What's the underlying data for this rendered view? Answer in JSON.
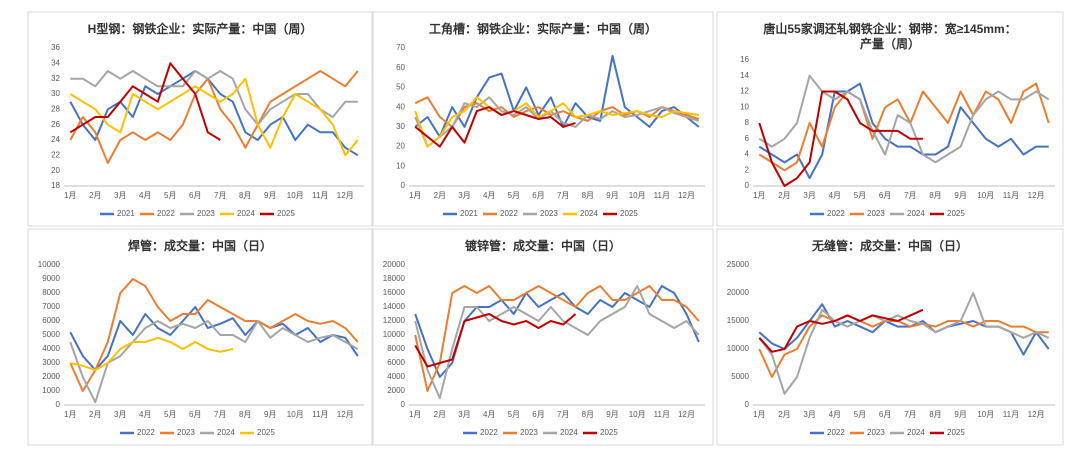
{
  "chart_data": [
    {
      "type": "line",
      "title": "H型钢：钢铁企业：实际产量：中国（周）",
      "categories": [
        "1月",
        null,
        "2月",
        null,
        "3月",
        null,
        "4月",
        null,
        "5月",
        null,
        "6月",
        null,
        "7月",
        null,
        "8月",
        null,
        "9月",
        null,
        "10月",
        null,
        "11月",
        null,
        "12月",
        null
      ],
      "ylim": [
        18,
        36
      ],
      "yticks": [
        18,
        20,
        22,
        24,
        26,
        28,
        30,
        32,
        34,
        36
      ],
      "series": [
        {
          "name": "2021",
          "color": "#4472c4",
          "values": [
            29,
            26,
            24,
            28,
            29,
            27,
            31,
            30,
            31,
            32,
            33,
            32,
            30,
            29,
            25,
            24,
            26,
            27,
            24,
            26,
            25,
            25,
            23,
            22
          ]
        },
        {
          "name": "2022",
          "color": "#ed7d31",
          "values": [
            24,
            27,
            25,
            21,
            24,
            25,
            24,
            25,
            24,
            26,
            30,
            32,
            28,
            26,
            23,
            26,
            29,
            30,
            31,
            32,
            33,
            32,
            31,
            33
          ]
        },
        {
          "name": "2023",
          "color": "#a5a5a5",
          "values": [
            32,
            32,
            31,
            33,
            32,
            33,
            32,
            31,
            31,
            31,
            33,
            32,
            33,
            32,
            28,
            26,
            28,
            29,
            30,
            30,
            28,
            27,
            29,
            29
          ]
        },
        {
          "name": "2024",
          "color": "#ffc000",
          "values": [
            30,
            29,
            28,
            26,
            25,
            30,
            29,
            28,
            29,
            30,
            31,
            30,
            29,
            30,
            32,
            26,
            23,
            27,
            30,
            29,
            28,
            26,
            22,
            24
          ]
        },
        {
          "name": "2025",
          "color": "#c00000",
          "values": [
            25,
            26,
            27,
            27,
            29,
            31,
            30,
            29,
            34,
            32,
            30,
            25,
            24,
            null,
            null,
            null,
            null,
            null,
            null,
            null,
            null,
            null,
            null,
            null
          ]
        }
      ]
    },
    {
      "type": "line",
      "title": "工角槽：钢铁企业：实际产量：中国（周）",
      "categories": [
        "1月",
        null,
        "2月",
        null,
        "3月",
        null,
        "4月",
        null,
        "5月",
        null,
        "6月",
        null,
        "7月",
        null,
        "8月",
        null,
        "9月",
        null,
        "10月",
        null,
        "11月",
        null,
        "12月",
        null
      ],
      "ylim": [
        0,
        70
      ],
      "yticks": [
        0,
        10,
        20,
        30,
        40,
        50,
        60,
        70
      ],
      "series": [
        {
          "name": "2021",
          "color": "#4472c4",
          "values": [
            30,
            35,
            25,
            40,
            30,
            45,
            55,
            57,
            38,
            50,
            36,
            45,
            30,
            42,
            35,
            33,
            66,
            40,
            35,
            30,
            38,
            40,
            35,
            30
          ]
        },
        {
          "name": "2022",
          "color": "#ed7d31",
          "values": [
            42,
            45,
            35,
            30,
            40,
            42,
            38,
            40,
            35,
            38,
            40,
            36,
            38,
            35,
            33,
            38,
            40,
            36,
            38,
            35,
            40,
            38,
            36,
            34
          ]
        },
        {
          "name": "2023",
          "color": "#a5a5a5",
          "values": [
            35,
            20,
            25,
            30,
            42,
            40,
            45,
            38,
            36,
            40,
            34,
            38,
            32,
            30,
            36,
            34,
            38,
            35,
            36,
            38,
            40,
            37,
            35,
            33
          ]
        },
        {
          "name": "2024",
          "color": "#ffc000",
          "values": [
            38,
            20,
            25,
            35,
            38,
            45,
            40,
            36,
            38,
            42,
            35,
            38,
            42,
            35,
            36,
            38,
            36,
            37,
            38,
            36,
            35,
            38,
            37,
            36
          ]
        },
        {
          "name": "2025",
          "color": "#c00000",
          "values": [
            30,
            25,
            20,
            30,
            22,
            38,
            40,
            36,
            38,
            36,
            34,
            35,
            30,
            32,
            null,
            null,
            null,
            null,
            null,
            null,
            null,
            null,
            null,
            null
          ]
        }
      ]
    },
    {
      "type": "line",
      "title": [
        "唐山55家调还轧钢铁企业：钢带：宽≥145mm：",
        "产量（周）"
      ],
      "categories": [
        "1月",
        null,
        "2月",
        null,
        "3月",
        null,
        "4月",
        null,
        "5月",
        null,
        "6月",
        null,
        "7月",
        null,
        "8月",
        null,
        "9月",
        null,
        "10月",
        null,
        "11月",
        null,
        "12月",
        null
      ],
      "ylim": [
        0,
        16
      ],
      "yticks": [
        0,
        2,
        4,
        6,
        8,
        10,
        12,
        14,
        16
      ],
      "series": [
        {
          "name": "2022",
          "color": "#4472c4",
          "values": [
            5,
            4,
            3,
            4,
            1,
            4,
            12,
            12,
            13,
            8,
            6,
            5,
            5,
            4,
            4,
            5,
            10,
            8,
            6,
            5,
            6,
            4,
            5,
            5
          ]
        },
        {
          "name": "2023",
          "color": "#ed7d31",
          "values": [
            4,
            3,
            2,
            3,
            8,
            5,
            10,
            12,
            11,
            6,
            10,
            11,
            8,
            12,
            10,
            8,
            12,
            9,
            12,
            11,
            8,
            12,
            13,
            8
          ]
        },
        {
          "name": "2024",
          "color": "#a5a5a5",
          "values": [
            6,
            5,
            6,
            8,
            14,
            12,
            11,
            12,
            11,
            7,
            4,
            9,
            8,
            4,
            3,
            4,
            5,
            9,
            11,
            12,
            11,
            11,
            12,
            11
          ]
        },
        {
          "name": "2025",
          "color": "#c00000",
          "values": [
            8,
            3,
            0,
            1,
            3,
            12,
            12,
            11,
            8,
            7,
            7,
            7,
            6,
            6,
            null,
            null,
            null,
            null,
            null,
            null,
            null,
            null,
            null,
            null
          ]
        }
      ]
    },
    {
      "type": "line",
      "title": "焊管：成交量：中国（日）",
      "categories": [
        "1月",
        null,
        "2月",
        null,
        "3月",
        null,
        "4月",
        null,
        "5月",
        null,
        "6月",
        null,
        "7月",
        null,
        "8月",
        null,
        "9月",
        null,
        "10月",
        null,
        "11月",
        null,
        "12月",
        null
      ],
      "ylim": [
        0,
        10000
      ],
      "yticks": [
        0,
        1000,
        2000,
        3000,
        4000,
        5000,
        6000,
        7000,
        8000,
        9000,
        10000
      ],
      "series": [
        {
          "name": "2022",
          "color": "#4472c4",
          "values": [
            5200,
            3500,
            2500,
            3500,
            6000,
            5000,
            6500,
            5500,
            5000,
            6000,
            7000,
            5500,
            5800,
            6200,
            5000,
            6000,
            5500,
            5800,
            5000,
            5500,
            4500,
            5000,
            4800,
            3500
          ]
        },
        {
          "name": "2023",
          "color": "#ed7d31",
          "values": [
            3000,
            1000,
            2500,
            4500,
            8000,
            9000,
            8500,
            7000,
            6000,
            6500,
            6500,
            7500,
            7000,
            6500,
            6000,
            6000,
            5500,
            6000,
            6500,
            6000,
            5800,
            6000,
            5500,
            4500
          ]
        },
        {
          "name": "2024",
          "color": "#a5a5a5",
          "values": [
            4500,
            2000,
            200,
            3000,
            3500,
            4500,
            5500,
            6000,
            5500,
            5800,
            5500,
            6000,
            5000,
            5000,
            4500,
            6000,
            4800,
            5500,
            5000,
            4500,
            4800,
            5000,
            4500,
            4000
          ]
        },
        {
          "name": "2025",
          "color": "#ffc000",
          "values": [
            3000,
            2800,
            2500,
            3000,
            4000,
            4500,
            4500,
            4800,
            4500,
            4000,
            4500,
            4000,
            3800,
            4000,
            null,
            null,
            null,
            null,
            null,
            null,
            null,
            null,
            null,
            null
          ]
        }
      ]
    },
    {
      "type": "line",
      "title": "镀锌管：成交量：中国（日）",
      "categories": [
        "1月",
        null,
        "2月",
        null,
        "3月",
        null,
        "4月",
        null,
        "5月",
        null,
        "6月",
        null,
        "7月",
        null,
        "8月",
        null,
        "9月",
        null,
        "10月",
        null,
        "11月",
        null,
        "12月",
        null
      ],
      "ylim": [
        0,
        20000
      ],
      "yticks": [
        0,
        2000,
        4000,
        6000,
        8000,
        10000,
        12000,
        14000,
        16000,
        18000,
        20000
      ],
      "series": [
        {
          "name": "2022",
          "color": "#4472c4",
          "values": [
            13000,
            8000,
            4000,
            6000,
            12000,
            14000,
            14000,
            15000,
            13000,
            16000,
            14000,
            15000,
            16000,
            14000,
            13000,
            15000,
            14000,
            16000,
            15000,
            14000,
            17000,
            16000,
            13000,
            9000
          ]
        },
        {
          "name": "2023",
          "color": "#ed7d31",
          "values": [
            10000,
            2000,
            6000,
            16000,
            17000,
            16000,
            17000,
            15000,
            15000,
            16000,
            17000,
            16000,
            15000,
            14000,
            16000,
            17000,
            15000,
            15000,
            16000,
            17000,
            15000,
            15000,
            14000,
            12000
          ]
        },
        {
          "name": "2024",
          "color": "#a5a5a5",
          "values": [
            12000,
            5000,
            1000,
            8000,
            14000,
            14000,
            12000,
            13000,
            14000,
            13000,
            12000,
            14000,
            12000,
            11000,
            10000,
            12000,
            13000,
            14000,
            17000,
            13000,
            12000,
            11000,
            12000,
            10000
          ]
        },
        {
          "name": "2025",
          "color": "#c00000",
          "values": [
            8500,
            5500,
            6000,
            6500,
            12000,
            12500,
            13000,
            12000,
            11500,
            12000,
            11000,
            12000,
            11500,
            13000,
            null,
            null,
            null,
            null,
            null,
            null,
            null,
            null,
            null,
            null
          ]
        }
      ]
    },
    {
      "type": "line",
      "title": "无缝管：成交量：中国（日）",
      "categories": [
        "1月",
        null,
        "2月",
        null,
        "3月",
        null,
        "4月",
        null,
        "5月",
        null,
        "6月",
        null,
        "7月",
        null,
        "8月",
        null,
        "9月",
        null,
        "10月",
        null,
        "11月",
        null,
        "12月",
        null
      ],
      "ylim": [
        0,
        25000
      ],
      "yticks": [
        0,
        5000,
        10000,
        15000,
        20000,
        25000
      ],
      "series": [
        {
          "name": "2022",
          "color": "#4472c4",
          "values": [
            13000,
            11000,
            10000,
            12000,
            15000,
            18000,
            14000,
            15000,
            14000,
            13000,
            15000,
            14000,
            14000,
            15000,
            13000,
            14000,
            14500,
            15000,
            14000,
            14000,
            13000,
            9000,
            13000,
            10000
          ]
        },
        {
          "name": "2023",
          "color": "#ed7d31",
          "values": [
            10000,
            5000,
            9000,
            10000,
            14000,
            16000,
            15000,
            16000,
            15000,
            14000,
            15000,
            15000,
            14000,
            14500,
            14000,
            15000,
            15000,
            14000,
            15000,
            15000,
            14000,
            14000,
            13000,
            13000
          ]
        },
        {
          "name": "2024",
          "color": "#a5a5a5",
          "values": [
            12000,
            9000,
            2000,
            5000,
            12000,
            17000,
            15000,
            14000,
            15000,
            16000,
            15000,
            16000,
            15000,
            14500,
            13000,
            14000,
            15000,
            20000,
            14000,
            14000,
            13000,
            12000,
            13000,
            12000
          ]
        },
        {
          "name": "2025",
          "color": "#c00000",
          "values": [
            12000,
            9500,
            10000,
            14000,
            15000,
            14500,
            15000,
            16000,
            15000,
            16000,
            15500,
            15000,
            16000,
            17000,
            null,
            null,
            null,
            null,
            null,
            null,
            null,
            null,
            null,
            null
          ]
        }
      ]
    }
  ]
}
